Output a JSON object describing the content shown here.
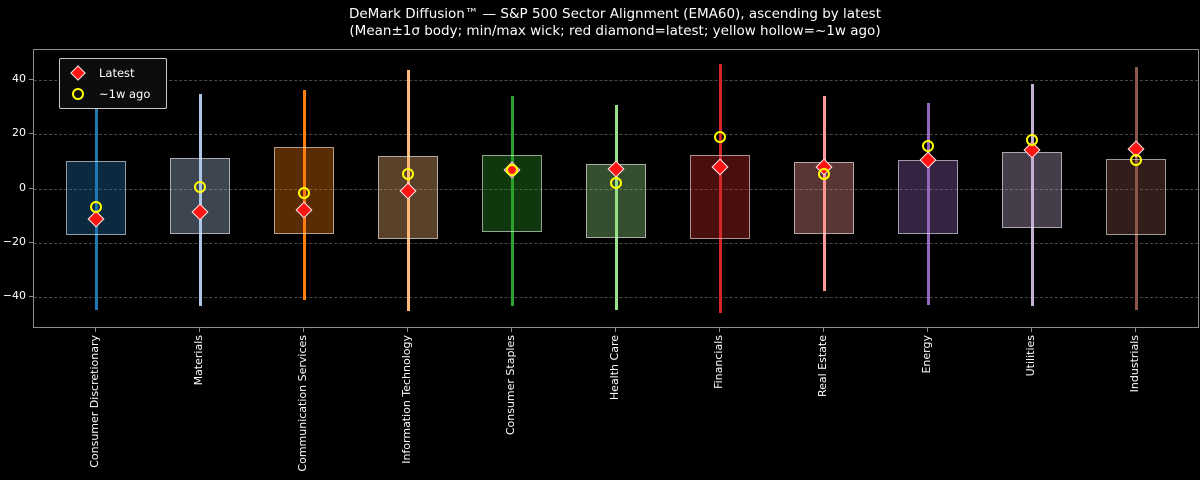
{
  "title": "DeMark Diffusion™ — S&P 500 Sector Alignment (EMA60), ascending by latest",
  "subtitle": "(Mean±1σ body; min/max wick; red diamond=latest; yellow hollow=~1w ago)",
  "legend": {
    "latest_label": "Latest",
    "week_ago_label": "~1w ago"
  },
  "colors": {
    "background": "#000000",
    "text": "#ffffff",
    "frame": "#8a8a8a",
    "grid": "#4a4a4a",
    "latest_marker": "#ff1414",
    "latest_marker_edge": "#f0f0f0",
    "week_ago_marker": "#ffff00",
    "box_edge": "rgba(255,255,255,0.55)"
  },
  "chart_data": {
    "type": "range-boxplot-with-markers",
    "title": "DeMark Diffusion™ — S&P 500 Sector Alignment (EMA60), ascending by latest",
    "subtitle": "(Mean±1σ body; min/max wick; red diamond=latest; yellow hollow=~1w ago)",
    "xlabel": "",
    "ylabel": "",
    "ylim": [
      -51,
      51
    ],
    "yticks": [
      40,
      20,
      0,
      -20,
      -40
    ],
    "grid": "horizontal-dashed",
    "legend_position": "upper-left",
    "categories": [
      "Consumer Discretionary",
      "Materials",
      "Communication Services",
      "Information Technology",
      "Consumer Staples",
      "Health Care",
      "Financials",
      "Real Estate",
      "Energy",
      "Utilities",
      "Industrials"
    ],
    "series": [
      {
        "sector": "Consumer Discretionary",
        "color": "#1f77b4",
        "mean_plus_1sigma": 10.0,
        "mean_minus_1sigma": -17.3,
        "max": 33.3,
        "min": -44.6,
        "latest": -11.2,
        "week_ago": -6.9
      },
      {
        "sector": "Materials",
        "color": "#aec7e8",
        "mean_plus_1sigma": 11.2,
        "mean_minus_1sigma": -16.7,
        "max": 34.7,
        "min": -43.2,
        "latest": -8.6,
        "week_ago": 0.6
      },
      {
        "sector": "Communication Services",
        "color": "#ff7f0e",
        "mean_plus_1sigma": 15.2,
        "mean_minus_1sigma": -16.6,
        "max": 36.3,
        "min": -41.0,
        "latest": -8.1,
        "week_ago": -1.5
      },
      {
        "sector": "Information Technology",
        "color": "#ffbb78",
        "mean_plus_1sigma": 11.8,
        "mean_minus_1sigma": -18.7,
        "max": 43.7,
        "min": -45.0,
        "latest": -1.1,
        "week_ago": 5.3
      },
      {
        "sector": "Consumer Staples",
        "color": "#2ca02c",
        "mean_plus_1sigma": 12.3,
        "mean_minus_1sigma": -16.2,
        "max": 34.1,
        "min": -43.1,
        "latest": 6.8,
        "week_ago": 6.8
      },
      {
        "sector": "Health Care",
        "color": "#98df8a",
        "mean_plus_1sigma": 9.1,
        "mean_minus_1sigma": -18.3,
        "max": 30.8,
        "min": -44.7,
        "latest": 7.1,
        "week_ago": 2.0
      },
      {
        "sector": "Financials",
        "color": "#d62728",
        "mean_plus_1sigma": 12.4,
        "mean_minus_1sigma": -18.5,
        "max": 45.8,
        "min": -45.9,
        "latest": 7.9,
        "week_ago": 19.0
      },
      {
        "sector": "Real Estate",
        "color": "#ff9896",
        "mean_plus_1sigma": 9.6,
        "mean_minus_1sigma": -16.9,
        "max": 34.1,
        "min": -37.9,
        "latest": 8.0,
        "week_ago": 5.5
      },
      {
        "sector": "Energy",
        "color": "#9467bd",
        "mean_plus_1sigma": 10.6,
        "mean_minus_1sigma": -16.8,
        "max": 31.4,
        "min": -42.8,
        "latest": 10.4,
        "week_ago": 15.7
      },
      {
        "sector": "Utilities",
        "color": "#c5b0d5",
        "mean_plus_1sigma": 13.4,
        "mean_minus_1sigma": -14.6,
        "max": 38.4,
        "min": -43.4,
        "latest": 14.2,
        "week_ago": 18.0
      },
      {
        "sector": "Industrials",
        "color": "#8c564b",
        "mean_plus_1sigma": 10.9,
        "mean_minus_1sigma": -17.1,
        "max": 44.9,
        "min": -44.7,
        "latest": 14.6,
        "week_ago": 10.6
      }
    ]
  }
}
